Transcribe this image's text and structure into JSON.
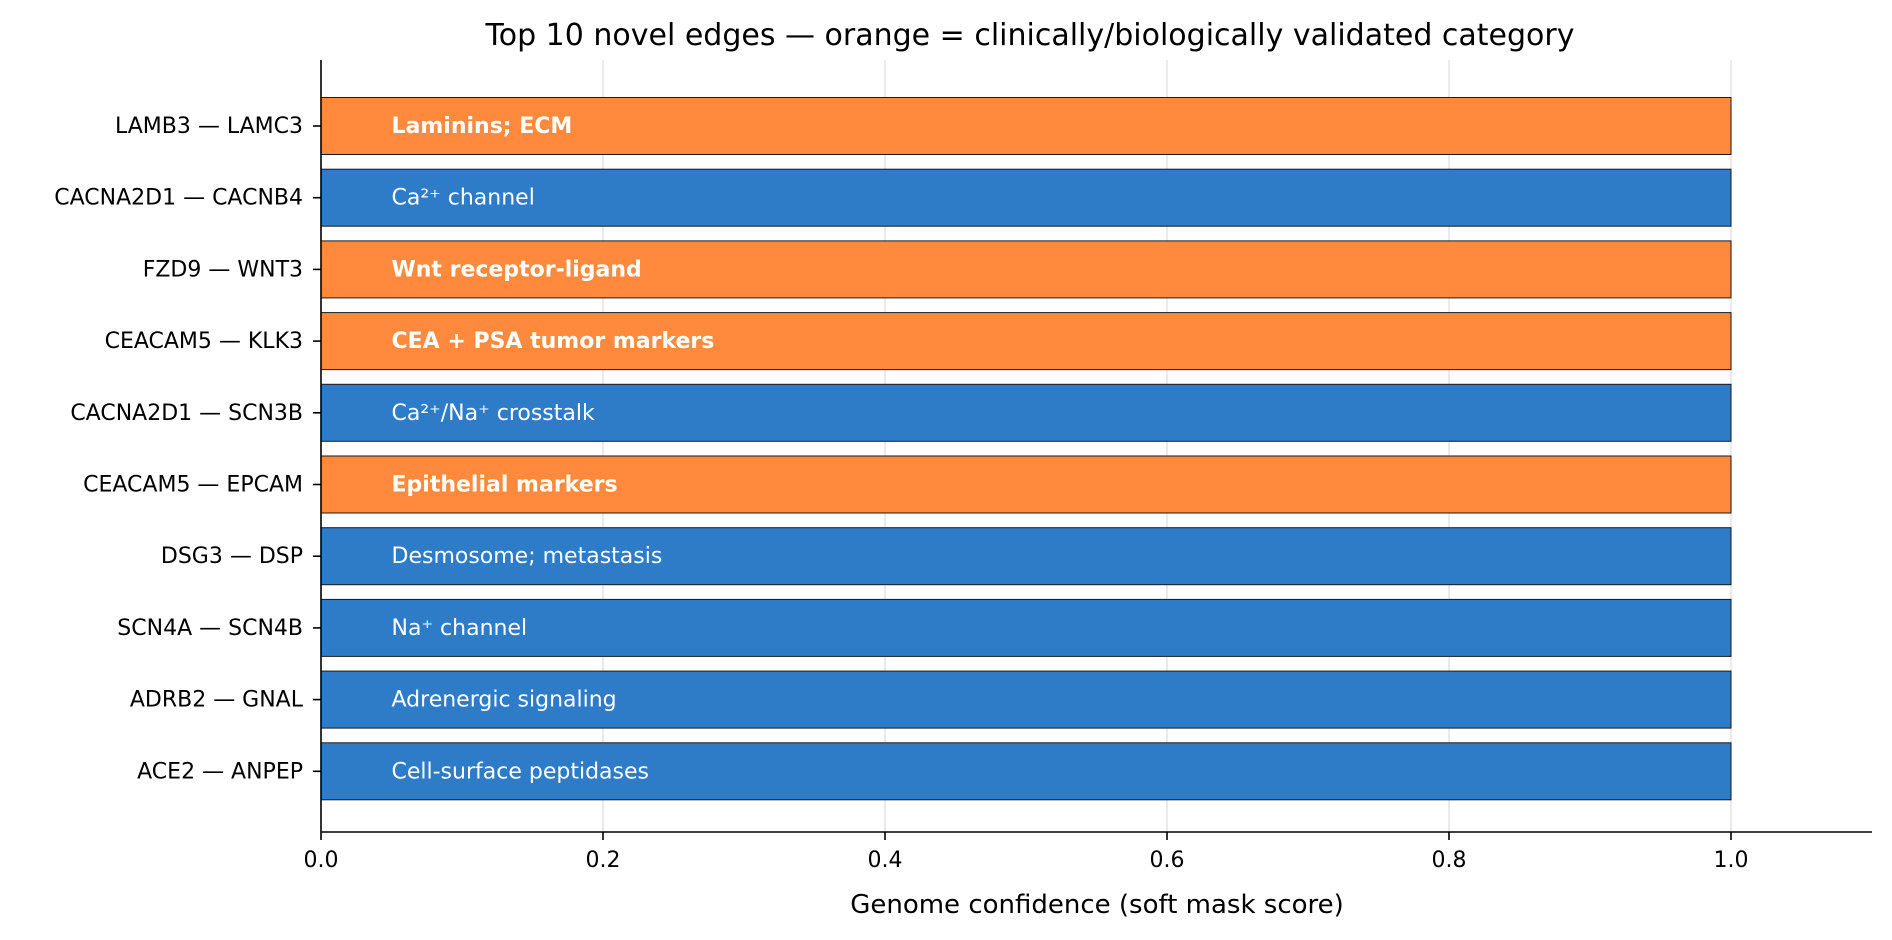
{
  "chart_data": {
    "type": "bar",
    "orientation": "horizontal",
    "title": "Top 10 novel edges — orange = clinically/biologically validated category",
    "xlabel": "Genome confidence (soft mask score)",
    "ylabel": "",
    "xlim": [
      0,
      1.1
    ],
    "xticks": [
      0.0,
      0.2,
      0.4,
      0.6,
      0.8,
      1.0
    ],
    "xtick_labels": [
      "0.0",
      "0.2",
      "0.4",
      "0.6",
      "0.8",
      "1.0"
    ],
    "grid": "x-axis vertical gridlines",
    "colors": {
      "validated": "#FF8A3D",
      "other": "#2E7BC8"
    },
    "categories": [
      "LAMB3 — LAMC3",
      "CACNA2D1 — CACNB4",
      "FZD9 — WNT3",
      "CEACAM5 — KLK3",
      "CACNA2D1 — SCN3B",
      "CEACAM5 — EPCAM",
      "DSG3 — DSP",
      "SCN4A — SCN4B",
      "ADRB2 — GNAL",
      "ACE2 — ANPEP"
    ],
    "values": [
      1.0,
      1.0,
      1.0,
      1.0,
      1.0,
      1.0,
      1.0,
      1.0,
      1.0,
      1.0
    ],
    "annotations": [
      "Laminins; ECM",
      "Ca²⁺ channel",
      "Wnt receptor-ligand",
      "CEA + PSA tumor markers",
      "Ca²⁺/Na⁺ crosstalk",
      "Epithelial markers",
      "Desmosome; metastasis",
      "Na⁺ channel",
      "Adrenergic signaling",
      "Cell-surface peptidases"
    ],
    "validated": [
      true,
      false,
      true,
      true,
      false,
      true,
      false,
      false,
      false,
      false
    ]
  }
}
